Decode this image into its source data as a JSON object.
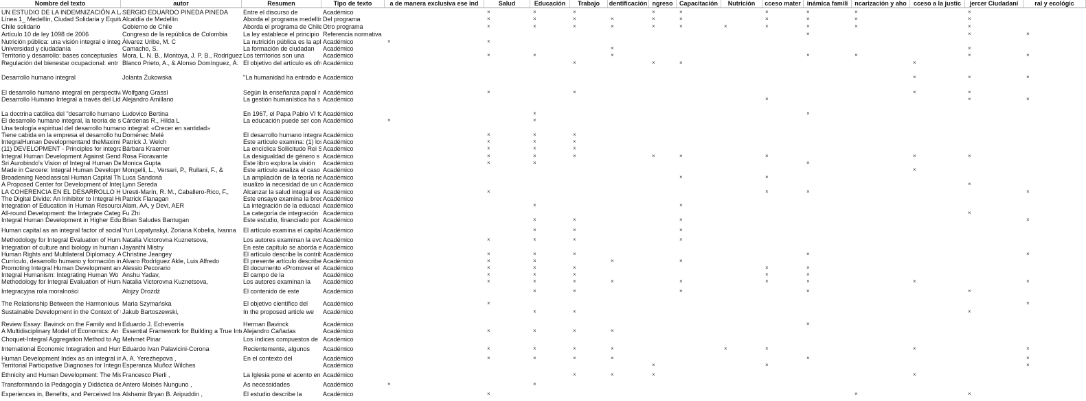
{
  "table": {
    "header": [
      "Nombre del texto",
      "autor",
      "Resumen",
      "Tipo de texto",
      "a de manera exclusiva ese ind",
      "Salud",
      "Educación",
      "Trabajo",
      "dentificación",
      "ngreso",
      "Capacitación",
      "Nutrición",
      "cceso mater",
      "inámica famili",
      "ncarización y aho",
      "cceso a la justic",
      "jercer Ciudadaní",
      "ral y ecológic"
    ],
    "rows": [
      [
        "UN ESTUDIO DE LA INDEMNIZACIÓN A LA",
        "SERGIO EDUARDO PINEDA PINEDA",
        "Entre el discurso de",
        "Académico",
        null,
        "×",
        "×",
        "×",
        null,
        "×",
        "×",
        null,
        "×",
        "×",
        "×",
        null,
        "×",
        null
      ],
      [
        "Línea 1_ Medellín, Ciudad Solidaria y Equita",
        "Alcaldía de Medellín",
        "Aborda el programa medellín",
        "Del programa",
        null,
        "×",
        "×",
        "×",
        "×",
        "×",
        "×",
        null,
        "×",
        "×",
        "×",
        null,
        "×",
        null
      ],
      [
        "Chile solidario",
        "Gobierno de Chile",
        "Aborda el programa de Chile",
        "Otro programa",
        null,
        "×",
        "×",
        "×",
        "×",
        "×",
        "×",
        "×",
        "×",
        "×",
        "×",
        null,
        "×",
        null
      ],
      [
        "Artículo 10 de ley 1098 de 2006",
        "Congreso de la república de Colombia",
        "La ley establece el principio",
        "Referencia normativa",
        null,
        null,
        null,
        null,
        null,
        null,
        null,
        null,
        null,
        "×",
        null,
        null,
        "×",
        "×"
      ],
      [
        "Nutrición pública: una visión integral e integ",
        "Álvarez Uribe, M. C",
        "La nutrición pública es la apl",
        "Académico",
        "×",
        "×",
        null,
        null,
        null,
        null,
        null,
        null,
        null,
        null,
        null,
        null,
        null,
        null
      ],
      [
        "Universidad y ciudadanía",
        "Camacho, S.",
        "La formación de ciudadan",
        "Académico",
        null,
        null,
        null,
        null,
        "×",
        null,
        null,
        null,
        null,
        null,
        null,
        null,
        "×",
        null
      ],
      [
        "Territorio y desarrollo: bases conceptuales",
        "Mora, L. N. B., Montoya, J. P. B., Rodríguez",
        "Los territorios son una",
        "Académico",
        null,
        "×",
        "×",
        null,
        "×",
        null,
        null,
        null,
        null,
        "×",
        "×",
        null,
        "×",
        "×"
      ],
      [
        "Regulación del bienestar ocupacional: entr",
        "Blanco Prieto, A., & Alonso Domínguez, Á.",
        "El objetivo del artículo es ofre",
        "Académico",
        null,
        null,
        null,
        "×",
        null,
        "×",
        "×",
        null,
        null,
        null,
        null,
        "×",
        null,
        null
      ],
      [
        "Desarrollo humano integral",
        "Jolanta Żukowska",
        "\"La humanidad ha entrado e",
        "Académico",
        null,
        null,
        null,
        null,
        null,
        null,
        null,
        null,
        null,
        null,
        null,
        "×",
        "×",
        "×"
      ],
      [
        "El desarrollo humano integral en perspectiva",
        "Wolfgang Grassl",
        "Según la enseñanza papal r",
        "Académico",
        null,
        "×",
        null,
        "×",
        null,
        null,
        null,
        null,
        null,
        null,
        null,
        "×",
        "×",
        null
      ],
      [
        "Desarrollo Humano Integral a través del Lide",
        "Alejandro Amillano",
        "La gestión humanística ha s",
        "Académico",
        null,
        null,
        null,
        null,
        null,
        null,
        null,
        null,
        "×",
        null,
        null,
        null,
        "×",
        "×"
      ],
      [
        "La doctrina católica del \"desarrollo humano",
        "Ludovico Bertina",
        "En 1967, el Papa Pablo VI for",
        "Académico",
        null,
        null,
        "×",
        null,
        null,
        null,
        null,
        null,
        null,
        "×",
        null,
        null,
        null,
        null
      ],
      [
        "El desarrollo humano integral, la teoría de s",
        "Cárdenas R., Hilda L",
        "La educación puede ser con",
        "Académico",
        "×",
        null,
        "×",
        null,
        null,
        null,
        null,
        null,
        null,
        null,
        null,
        null,
        null,
        null
      ],
      [
        "Una teología espiritual del desarrollo humano integral: «Crecer en santidad»",
        null,
        null,
        null,
        null,
        null,
        null,
        null,
        null,
        null,
        null,
        null,
        null,
        null,
        null,
        null,
        null,
        null
      ],
      [
        "Tiene cabida en la empresa el desarrollo hu",
        "Doménec Melé",
        "El desarrollo humano integra",
        "Académico",
        null,
        "×",
        "×",
        "×",
        null,
        null,
        null,
        null,
        null,
        null,
        null,
        null,
        null,
        null
      ],
      [
        "IntegralHuman Developmentand theMaximi",
        "Patrick J. Welch",
        "Este artículo examina: (1) los",
        "Académico",
        null,
        "×",
        "×",
        "×",
        null,
        null,
        null,
        null,
        null,
        null,
        null,
        null,
        null,
        null
      ],
      [
        "(11) DEVELOPMENT - Principles for integral h",
        "Bárbara Kraemer",
        "La encíclica Sollicitudo Rei S",
        "Académico",
        null,
        "×",
        "×",
        "×",
        null,
        null,
        null,
        null,
        null,
        null,
        null,
        null,
        null,
        null
      ],
      [
        "Integral Human Development Against Gend",
        "Rosa Fioravante",
        "La desigualdad de género s",
        "Académico",
        null,
        "×",
        "×",
        "×",
        null,
        "×",
        "×",
        null,
        "×",
        null,
        null,
        "×",
        "×",
        null
      ],
      [
        "Sri Aurobindo's Vision of Integral Human De",
        "Monica Gupta",
        "Este libro explora la visión",
        "Académico",
        null,
        "×",
        "×",
        null,
        null,
        null,
        null,
        null,
        null,
        "×",
        null,
        null,
        null,
        null
      ],
      [
        "Made in Carcere: Integral Human Developm",
        "Mongelli, L., Versari, P., Rullani, F., &",
        "Este artículo analiza el caso",
        "Académico",
        null,
        null,
        null,
        null,
        null,
        null,
        null,
        null,
        null,
        null,
        null,
        "×",
        null,
        null
      ],
      [
        "Broadening Neoclassical Human Capital Th",
        "Luca Sandonà",
        "La ampliación de la teoría ne",
        "Académico",
        null,
        null,
        null,
        null,
        null,
        null,
        "×",
        null,
        "×",
        null,
        null,
        null,
        null,
        null
      ],
      [
        "A Proposed Center for Development of Integ",
        "Lynn Sereda",
        "isualizo la necesidad de un c",
        "Académico",
        null,
        null,
        null,
        null,
        null,
        null,
        null,
        null,
        null,
        null,
        null,
        null,
        "×",
        null
      ],
      [
        "LA COHERENCIA EN EL DESARROLLO HUM",
        "Uresti-Marín, R. M., Caballero-Rico, F.,",
        "Alcanzar la salud integral es",
        "Académico",
        null,
        "×",
        null,
        null,
        null,
        null,
        null,
        null,
        "×",
        "×",
        null,
        null,
        null,
        "×"
      ],
      [
        "The Digital Divide: An Inhibitor to Integral Hu",
        "Patrick Flanagan",
        "Este ensayo examina la brec",
        "Académico",
        null,
        null,
        null,
        null,
        null,
        null,
        null,
        null,
        null,
        null,
        null,
        null,
        null,
        null
      ],
      [
        "Integration of Education in Human Resource",
        "Alam, AA, y Devi, AER",
        "La integración de la educaci",
        "Académico",
        null,
        null,
        "×",
        null,
        null,
        null,
        "×",
        null,
        null,
        null,
        null,
        null,
        null,
        null
      ],
      [
        "All-round Development: the Integrate Categ",
        "Fu Zhi",
        "La categoría de integración",
        "Académico",
        null,
        null,
        null,
        null,
        null,
        null,
        null,
        null,
        null,
        null,
        null,
        null,
        "×",
        null
      ],
      [
        "Integral Human Development in Higher Educ",
        "Brian Saludes Bantugan",
        "Este estudio, financiado por",
        "Académico",
        null,
        null,
        "×",
        "×",
        null,
        null,
        "×",
        null,
        null,
        null,
        null,
        null,
        null,
        "×"
      ],
      [
        "Human capital as an integral factor of social",
        "Yuri Lopatynskyi, Zoriana Kobelia, Ivanna",
        "El artículo examina el capital",
        "Académico",
        null,
        null,
        "×",
        "×",
        null,
        null,
        "×",
        null,
        null,
        null,
        null,
        null,
        null,
        null
      ],
      [
        "Methodology for Integral Evaluation of Huma",
        "Natalia Victorovna Kuznetsova,",
        "Los autores examinan la evo",
        "Académico",
        null,
        "×",
        "×",
        "×",
        null,
        null,
        "×",
        null,
        null,
        null,
        null,
        null,
        null,
        null
      ],
      [
        "Integration of culture and biology in human d",
        "Jayanthi Mistry",
        "En este capítulo se aborda e",
        "Académico",
        null,
        null,
        null,
        null,
        null,
        null,
        null,
        null,
        null,
        null,
        null,
        null,
        null,
        null
      ],
      [
        "Human Rights and Multilateral Diplomacy. A",
        "Christine Jeangey",
        "El artículo describe la contrib",
        "Académico",
        null,
        "×",
        "×",
        "×",
        null,
        null,
        null,
        null,
        null,
        "×",
        null,
        null,
        null,
        "×"
      ],
      [
        "Currículo, desarrollo humano y formación in",
        "Alvaro Rodríguez Akle, Luis Alfredo",
        "El presente artículo describe",
        "Académico",
        null,
        "×",
        "×",
        null,
        "×",
        null,
        "×",
        null,
        null,
        null,
        null,
        null,
        null,
        null
      ],
      [
        "Promoting Integral Human Development and",
        "Alessio Pecorario",
        "El documento «Promover el d",
        "Académico",
        null,
        "×",
        "×",
        "×",
        null,
        null,
        null,
        null,
        "×",
        "×",
        null,
        null,
        null,
        null
      ],
      [
        "Integral Humanism: Integrating Human Wo",
        "Anshu Yadav,",
        "El campo de la",
        "Académico",
        null,
        "×",
        "×",
        "×",
        null,
        null,
        null,
        null,
        "×",
        "×",
        null,
        null,
        null,
        null
      ],
      [
        "Methodology for Integral Evaluation of Huma",
        "Natalia Victorovna Kuznetsova,",
        "Los autores examinan la",
        "Académico",
        null,
        "×",
        "×",
        "×",
        "×",
        null,
        "×",
        null,
        "×",
        "×",
        null,
        "×",
        null,
        "×"
      ],
      [
        "Integracyjna rola moralności",
        "Alojzy Drożdż",
        "El contenido de este",
        "Académico",
        null,
        null,
        "×",
        "×",
        null,
        null,
        "×",
        null,
        null,
        "×",
        null,
        null,
        "×",
        null
      ],
      [
        "The Relationship Between the Harmonious I",
        "Maria Szymańska",
        "El objetivo científico del",
        "Académico",
        null,
        "×",
        null,
        null,
        null,
        null,
        null,
        null,
        null,
        null,
        null,
        null,
        null,
        "×"
      ],
      [
        "Sustainable Development in the Context of t",
        "Jakub Bartoszewski,",
        "In the proposed article we",
        "Académico",
        null,
        null,
        "×",
        "×",
        null,
        null,
        null,
        null,
        null,
        null,
        null,
        null,
        "×",
        null
      ],
      [
        "Review Essay: Bavinck on the Family and Int",
        "Eduardo J. Echeverría",
        "Herman Bavinck",
        "Académico",
        null,
        null,
        null,
        null,
        null,
        null,
        null,
        null,
        null,
        "×",
        null,
        null,
        null,
        null
      ],
      [
        "A Multidisciplinary Model of Economics: An",
        "Essential Framework for Building a True Integr",
        "Alejandro Cañadas",
        "Académico",
        null,
        "×",
        "×",
        "×",
        "×",
        null,
        null,
        null,
        null,
        null,
        null,
        null,
        null,
        null
      ],
      [
        "Choquet-Integral Aggregation Method to Ag",
        "Mehmet Pinar",
        "Los índices compuestos de",
        "Académico",
        null,
        null,
        null,
        null,
        null,
        null,
        null,
        null,
        null,
        null,
        null,
        null,
        null,
        null
      ],
      [
        "International Economic Integration and Hum",
        "Eduardo Ivan Palavicini-Corona",
        "Recientemente, algunos",
        "Académico",
        null,
        "×",
        "×",
        "×",
        "×",
        null,
        null,
        "×",
        "×",
        null,
        null,
        "×",
        null,
        "×"
      ],
      [
        "Human Development Index as an integral inc",
        "A. A. Yerezhepova ,",
        "En el contexto del",
        "Académico",
        null,
        "×",
        "×",
        "×",
        "×",
        null,
        null,
        null,
        null,
        "×",
        null,
        null,
        null,
        "×"
      ],
      [
        "Territorial Participative Diagnoses for Integra",
        "Esperanza Muñoz Wilches",
        null,
        "Académico",
        null,
        null,
        null,
        null,
        null,
        "×",
        null,
        null,
        "×",
        null,
        null,
        null,
        null,
        "×"
      ],
      [
        "Ethnicity and Human Development: The Mis",
        "Francesco Pierli ,",
        "La Iglesia pone el acento en",
        "Académico",
        null,
        null,
        null,
        "×",
        "×",
        "×",
        null,
        null,
        null,
        null,
        null,
        "×",
        null,
        null
      ],
      [
        "Transformando la Pedagogía y Didáctica de",
        "Antero Moisés Nunguno ,",
        "As necessidades",
        "Académico",
        "×",
        null,
        "×",
        null,
        null,
        null,
        null,
        null,
        null,
        null,
        null,
        null,
        null,
        null
      ],
      [
        "Experiences in, Benefits, and Perceived Ins",
        "Alshamir Bryan B. Aripuddin ,",
        "El estudio describe la",
        "Académico",
        null,
        "×",
        null,
        null,
        null,
        null,
        null,
        null,
        null,
        null,
        "×",
        null,
        "×",
        null
      ]
    ]
  }
}
